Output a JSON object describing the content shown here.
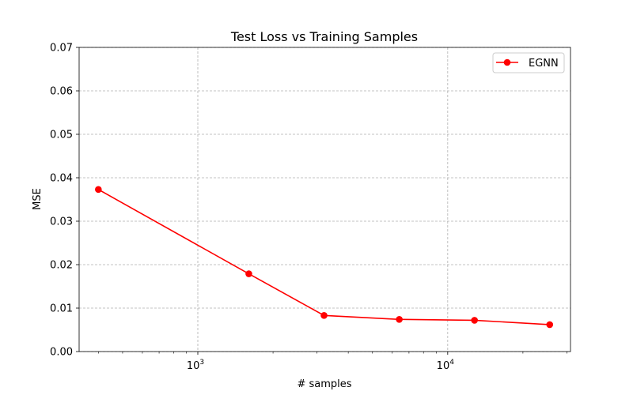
{
  "chart_data": {
    "type": "line",
    "title": "Test Loss vs Training Samples",
    "xlabel": "# samples",
    "ylabel": "MSE",
    "xscale": "log",
    "xlim": [
      335,
      31000
    ],
    "ylim": [
      0,
      0.07
    ],
    "yticks": [
      "0.00",
      "0.01",
      "0.02",
      "0.03",
      "0.04",
      "0.05",
      "0.06",
      "0.07"
    ],
    "xticks": [
      {
        "value": 1000,
        "base": "10",
        "exp": "3"
      },
      {
        "value": 10000,
        "base": "10",
        "exp": "4"
      }
    ],
    "grid": true,
    "legend_position": "top-right",
    "series": [
      {
        "name": "EGNN",
        "color": "#ff0000",
        "marker": "circle",
        "x": [
          400,
          1600,
          3200,
          6400,
          12800,
          25600
        ],
        "y": [
          0.0373,
          0.0179,
          0.0083,
          0.0074,
          0.0072,
          0.0062
        ]
      }
    ]
  }
}
